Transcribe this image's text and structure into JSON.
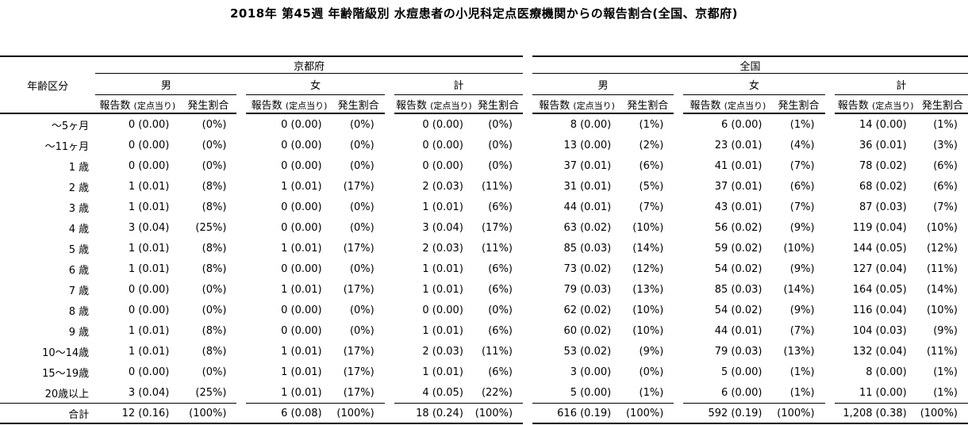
{
  "title": "2018年 第45週 年齢階級別 水痘患者の小児科定点医療機関からの報告割合(全国、京都府)",
  "header": {
    "age_label": "年齢区分",
    "regions": {
      "kyoto": "京都府",
      "national": "全国"
    },
    "sex": {
      "male": "男",
      "female": "女",
      "total": "計"
    },
    "columns": {
      "count": "報告数",
      "count_note": "(定点当り)",
      "ratio": "発生割合"
    }
  },
  "rows": [
    {
      "age": "〜5ヶ月",
      "cells": [
        "0 (0.00)",
        "(0%)",
        "0 (0.00)",
        "(0%)",
        "0 (0.00)",
        "(0%)",
        "8 (0.00)",
        "(1%)",
        "6 (0.00)",
        "(1%)",
        "14 (0.00)",
        "(1%)"
      ]
    },
    {
      "age": "〜11ヶ月",
      "cells": [
        "0 (0.00)",
        "(0%)",
        "0 (0.00)",
        "(0%)",
        "0 (0.00)",
        "(0%)",
        "13 (0.00)",
        "(2%)",
        "23 (0.01)",
        "(4%)",
        "36 (0.01)",
        "(3%)"
      ]
    },
    {
      "age": "1 歳",
      "cells": [
        "0 (0.00)",
        "(0%)",
        "0 (0.00)",
        "(0%)",
        "0 (0.00)",
        "(0%)",
        "37 (0.01)",
        "(6%)",
        "41 (0.01)",
        "(7%)",
        "78 (0.02)",
        "(6%)"
      ]
    },
    {
      "age": "2 歳",
      "cells": [
        "1 (0.01)",
        "(8%)",
        "1 (0.01)",
        "(17%)",
        "2 (0.03)",
        "(11%)",
        "31 (0.01)",
        "(5%)",
        "37 (0.01)",
        "(6%)",
        "68 (0.02)",
        "(6%)"
      ]
    },
    {
      "age": "3 歳",
      "cells": [
        "1 (0.01)",
        "(8%)",
        "0 (0.00)",
        "(0%)",
        "1 (0.01)",
        "(6%)",
        "44 (0.01)",
        "(7%)",
        "43 (0.01)",
        "(7%)",
        "87 (0.03)",
        "(7%)"
      ]
    },
    {
      "age": "4 歳",
      "cells": [
        "3 (0.04)",
        "(25%)",
        "0 (0.00)",
        "(0%)",
        "3 (0.04)",
        "(17%)",
        "63 (0.02)",
        "(10%)",
        "56 (0.02)",
        "(9%)",
        "119 (0.04)",
        "(10%)"
      ]
    },
    {
      "age": "5 歳",
      "cells": [
        "1 (0.01)",
        "(8%)",
        "1 (0.01)",
        "(17%)",
        "2 (0.03)",
        "(11%)",
        "85 (0.03)",
        "(14%)",
        "59 (0.02)",
        "(10%)",
        "144 (0.05)",
        "(12%)"
      ]
    },
    {
      "age": "6 歳",
      "cells": [
        "1 (0.01)",
        "(8%)",
        "0 (0.00)",
        "(0%)",
        "1 (0.01)",
        "(6%)",
        "73 (0.02)",
        "(12%)",
        "54 (0.02)",
        "(9%)",
        "127 (0.04)",
        "(11%)"
      ]
    },
    {
      "age": "7 歳",
      "cells": [
        "0 (0.00)",
        "(0%)",
        "1 (0.01)",
        "(17%)",
        "1 (0.01)",
        "(6%)",
        "79 (0.03)",
        "(13%)",
        "85 (0.03)",
        "(14%)",
        "164 (0.05)",
        "(14%)"
      ]
    },
    {
      "age": "8 歳",
      "cells": [
        "0 (0.00)",
        "(0%)",
        "0 (0.00)",
        "(0%)",
        "0 (0.00)",
        "(0%)",
        "62 (0.02)",
        "(10%)",
        "54 (0.02)",
        "(9%)",
        "116 (0.04)",
        "(10%)"
      ]
    },
    {
      "age": "9 歳",
      "cells": [
        "1 (0.01)",
        "(8%)",
        "0 (0.00)",
        "(0%)",
        "1 (0.01)",
        "(6%)",
        "60 (0.02)",
        "(10%)",
        "44 (0.01)",
        "(7%)",
        "104 (0.03)",
        "(9%)"
      ]
    },
    {
      "age": "10〜14歳",
      "cells": [
        "1 (0.01)",
        "(8%)",
        "1 (0.01)",
        "(17%)",
        "2 (0.03)",
        "(11%)",
        "53 (0.02)",
        "(9%)",
        "79 (0.03)",
        "(13%)",
        "132 (0.04)",
        "(11%)"
      ]
    },
    {
      "age": "15〜19歳",
      "cells": [
        "0 (0.00)",
        "(0%)",
        "1 (0.01)",
        "(17%)",
        "1 (0.01)",
        "(6%)",
        "3 (0.00)",
        "(0%)",
        "5 (0.00)",
        "(1%)",
        "8 (0.00)",
        "(1%)"
      ]
    },
    {
      "age": "20歳以上",
      "cells": [
        "3 (0.04)",
        "(25%)",
        "1 (0.01)",
        "(17%)",
        "4 (0.05)",
        "(22%)",
        "5 (0.00)",
        "(1%)",
        "6 (0.00)",
        "(1%)",
        "11 (0.00)",
        "(1%)"
      ]
    }
  ],
  "total": {
    "age": "合計",
    "cells": [
      "12 (0.16)",
      "(100%)",
      "6 (0.08)",
      "(100%)",
      "18 (0.24)",
      "(100%)",
      "616 (0.19)",
      "(100%)",
      "592 (0.19)",
      "(100%)",
      "1,208 (0.38)",
      "(100%)"
    ]
  }
}
